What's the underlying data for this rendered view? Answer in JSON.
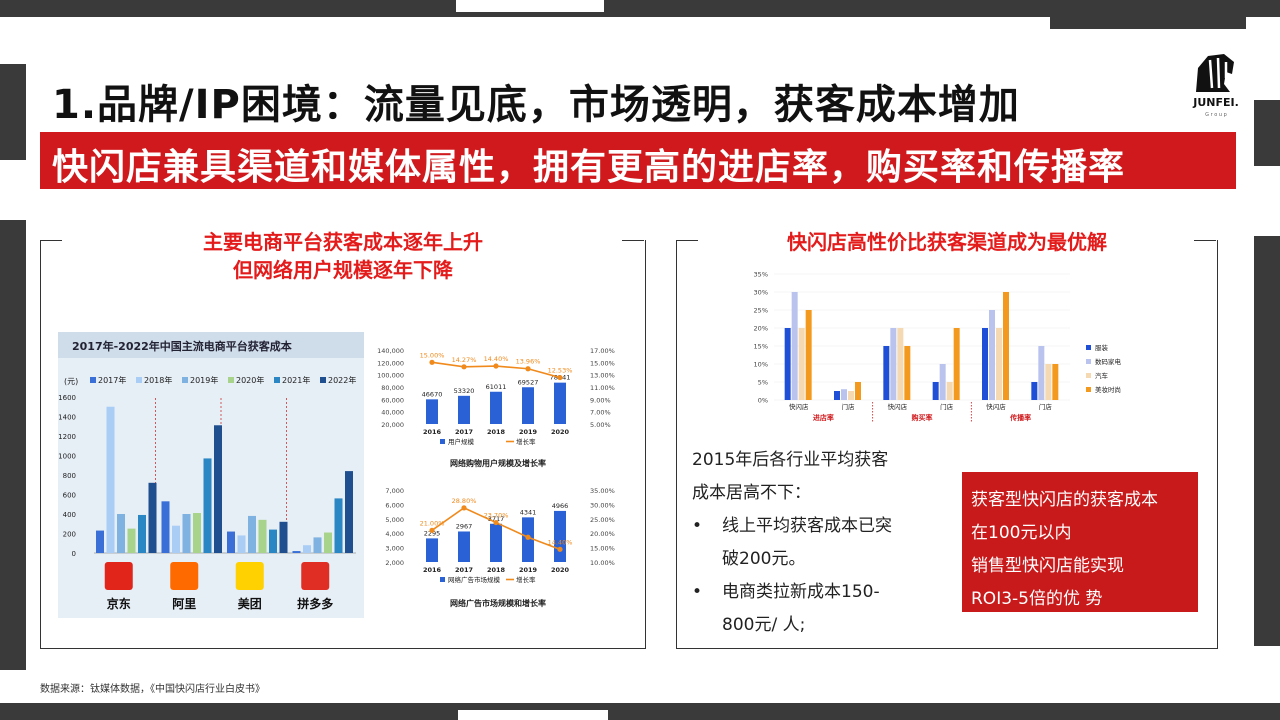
{
  "title": "1.品牌/IP困境：流量见底，市场透明，获客成本增加",
  "subtitle": "快闪店兼具渠道和媒体属性，拥有更高的进店率，购买率和传播率",
  "logo_text": "JUNFEI.",
  "logo_sub": "G r o u p",
  "left_panel": {
    "title_line1": "主要电商平台获客成本逐年上升",
    "title_line2": "但网络用户规模逐年下降"
  },
  "right_panel": {
    "title": "快闪店高性价比获客渠道成为最优解",
    "text_heading1": "2015年后各行业平均获客",
    "text_heading2": "成本居高不下：",
    "bullet1_a": "线上平均获客成本已突",
    "bullet1_b": "破200元。",
    "bullet2_a": "电商类拉新成本150-",
    "bullet2_b": "800元/ 人;",
    "redbox": [
      "获客型快闪店的获客成本",
      "在100元以内",
      "销售型快闪店能实现",
      "ROI3-5倍的优 势"
    ]
  },
  "source": "数据来源：钛媒体数据，《中国快闪店行业白皮书》",
  "colors": {
    "red": "#d0191c",
    "dark": "#3a3a3a",
    "orange": "#f08a1c",
    "blue": "#2a62d6"
  },
  "chart_data": [
    {
      "type": "bar",
      "title": "2017年-2022年中国主流电商平台获客成本",
      "ylabel": "(元)",
      "ylim": [
        0,
        1600
      ],
      "yticks": [
        0,
        200,
        400,
        600,
        800,
        1000,
        1200,
        1400,
        1600
      ],
      "categories": [
        "京东",
        "阿里",
        "美团",
        "拼多多"
      ],
      "series": [
        {
          "name": "2017年",
          "color": "#3a6fd8",
          "values": [
            230,
            530,
            220,
            20
          ]
        },
        {
          "name": "2018年",
          "color": "#a9cdf5",
          "values": [
            1500,
            280,
            180,
            80
          ]
        },
        {
          "name": "2019年",
          "color": "#7fb2e0",
          "values": [
            400,
            400,
            380,
            160
          ]
        },
        {
          "name": "2020年",
          "color": "#a7d38a",
          "values": [
            250,
            410,
            340,
            210
          ]
        },
        {
          "name": "2021年",
          "color": "#2b87c4",
          "values": [
            390,
            970,
            240,
            560
          ]
        },
        {
          "name": "2022年",
          "color": "#1f4f8f",
          "values": [
            720,
            1310,
            320,
            840
          ]
        }
      ]
    },
    {
      "type": "bar",
      "title": "网络购物用户规模及增长率",
      "categories": [
        "2016",
        "2017",
        "2018",
        "2019",
        "2020"
      ],
      "ylim": [
        0,
        140000
      ],
      "yticks": [
        "140,000",
        "120,000",
        "100,000",
        "80,000",
        "60,000",
        "40,000",
        "20,000"
      ],
      "y2ticks": [
        "17.00%",
        "15.00%",
        "13.00%",
        "11.00%",
        "9.00%",
        "7.00%",
        "5.00%"
      ],
      "series": [
        {
          "name": "用户规模",
          "values": [
            46670,
            53320,
            61011,
            69527,
            78241
          ],
          "labels": [
            "46670",
            "53320",
            "61011",
            "69527",
            "78241"
          ]
        },
        {
          "name": "增长率",
          "values": [
            15.0,
            14.27,
            14.4,
            13.96,
            12.53
          ],
          "labels": [
            "15.00%",
            "14.27%",
            "14.40%",
            "13.96%",
            "12.53%"
          ]
        }
      ]
    },
    {
      "type": "bar",
      "title": "网络广告市场规模和增长率",
      "categories": [
        "2016",
        "2017",
        "2018",
        "2019",
        "2020"
      ],
      "ylim": [
        0,
        7000
      ],
      "yticks": [
        "7,000",
        "6,000",
        "5,000",
        "4,000",
        "3,000",
        "2,000"
      ],
      "y2ticks": [
        "35.00%",
        "30.00%",
        "25.00%",
        "20.00%",
        "15.00%",
        "10.00%"
      ],
      "series": [
        {
          "name": "网络广告市场规模",
          "values": [
            2295,
            2967,
            3717,
            4341,
            4966
          ],
          "labels": [
            "2295",
            "2967",
            "3717",
            "4341",
            "4966"
          ]
        },
        {
          "name": "增长率",
          "values": [
            21.0,
            28.8,
            23.7,
            18.6,
            14.4
          ],
          "labels": [
            "21.00%",
            "28.80%",
            "23.70%",
            "",
            "14.40%"
          ]
        }
      ]
    },
    {
      "type": "bar",
      "ylim": [
        0,
        35
      ],
      "yticks": [
        "35%",
        "30%",
        "25%",
        "20%",
        "15%",
        "10%",
        "5%",
        "0%"
      ],
      "groups": [
        "进店率",
        "购买率",
        "传播率"
      ],
      "categories": [
        "快闪店",
        "门店",
        "快闪店",
        "门店",
        "快闪店",
        "门店"
      ],
      "series": [
        {
          "name": "服装",
          "color": "#1f4fd6",
          "values": [
            20,
            2.5,
            15,
            5,
            20,
            5
          ]
        },
        {
          "name": "数码家电",
          "color": "#b9c3ee",
          "values": [
            30,
            3,
            20,
            10,
            25,
            15
          ]
        },
        {
          "name": "汽车",
          "color": "#f4d9b3",
          "values": [
            20,
            2.5,
            20,
            5,
            20,
            10
          ]
        },
        {
          "name": "美妆时尚",
          "color": "#f39a1e",
          "values": [
            25,
            5,
            15,
            20,
            30,
            10
          ]
        }
      ]
    }
  ]
}
